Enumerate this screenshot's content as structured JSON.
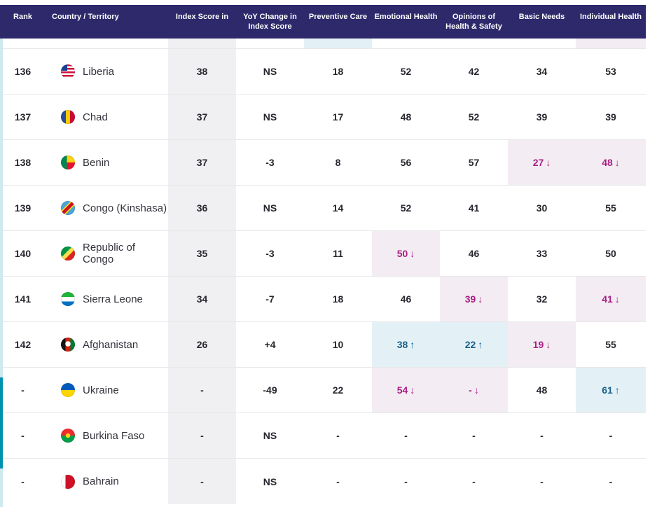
{
  "header": {
    "columns": [
      {
        "label": "Rank"
      },
      {
        "label": "Country / Territory"
      },
      {
        "label": "Index Score in"
      },
      {
        "label": "YoY Change in Index Score"
      },
      {
        "label": "Preventive Care"
      },
      {
        "label": "Emotional Health"
      },
      {
        "label": "Opinions of Health & Safety"
      },
      {
        "label": "Basic Needs"
      },
      {
        "label": "Individual Health"
      }
    ]
  },
  "rows": [
    {
      "rank": "136",
      "country": "Liberia",
      "flag": "liberia",
      "index": "38",
      "yoy": "NS",
      "preventive": "18",
      "emotional": "52",
      "opinions": "42",
      "basic": "34",
      "individual": "53"
    },
    {
      "rank": "137",
      "country": "Chad",
      "flag": "chad",
      "index": "37",
      "yoy": "NS",
      "preventive": "17",
      "emotional": "48",
      "opinions": "52",
      "basic": "39",
      "individual": "39"
    },
    {
      "rank": "138",
      "country": "Benin",
      "flag": "benin",
      "index": "37",
      "yoy": "-3",
      "preventive": "8",
      "emotional": "56",
      "opinions": "57",
      "basic": {
        "v": "27",
        "t": "down"
      },
      "individual": {
        "v": "48",
        "t": "down"
      }
    },
    {
      "rank": "139",
      "country": "Congo (Kinshasa)",
      "flag": "congo-kinshasa",
      "index": "36",
      "yoy": "NS",
      "preventive": "14",
      "emotional": "52",
      "opinions": "41",
      "basic": "30",
      "individual": "55"
    },
    {
      "rank": "140",
      "country": "Republic of Congo",
      "flag": "republic-of-congo",
      "index": "35",
      "yoy": "-3",
      "preventive": "11",
      "emotional": {
        "v": "50",
        "t": "down"
      },
      "opinions": "46",
      "basic": "33",
      "individual": "50"
    },
    {
      "rank": "141",
      "country": "Sierra Leone",
      "flag": "sierra-leone",
      "index": "34",
      "yoy": "-7",
      "preventive": "18",
      "emotional": "46",
      "opinions": {
        "v": "39",
        "t": "down"
      },
      "basic": "32",
      "individual": {
        "v": "41",
        "t": "down"
      }
    },
    {
      "rank": "142",
      "country": "Afghanistan",
      "flag": "afghanistan",
      "index": "26",
      "yoy": "+4",
      "preventive": "10",
      "emotional": {
        "v": "38",
        "t": "up"
      },
      "opinions": {
        "v": "22",
        "t": "up"
      },
      "basic": {
        "v": "19",
        "t": "down"
      },
      "individual": "55"
    },
    {
      "rank": "-",
      "country": "Ukraine",
      "flag": "ukraine",
      "index": "-",
      "yoy": "-49",
      "preventive": "22",
      "emotional": {
        "v": "54",
        "t": "down"
      },
      "opinions": {
        "v": "-",
        "t": "down"
      },
      "basic": "48",
      "individual": {
        "v": "61",
        "t": "up"
      }
    },
    {
      "rank": "-",
      "country": "Burkina Faso",
      "flag": "burkina-faso",
      "index": "-",
      "yoy": "NS",
      "preventive": "-",
      "emotional": "-",
      "opinions": "-",
      "basic": "-",
      "individual": "-"
    },
    {
      "rank": "-",
      "country": "Bahrain",
      "flag": "bahrain",
      "index": "-",
      "yoy": "NS",
      "preventive": "-",
      "emotional": "-",
      "opinions": "-",
      "basic": "-",
      "individual": "-"
    }
  ],
  "partial_row": {
    "highlights": {
      "index": "gray",
      "preventive": "up",
      "individual": "down"
    }
  },
  "trend_arrows": {
    "down": "↓",
    "up": "↑"
  },
  "colors": {
    "header_bg": "#2d296b",
    "header_text": "#ffffff",
    "index_column_bg": "#f0f0f2",
    "decline_bg": "#f3ecf2",
    "decline_text": "#a91e84",
    "improve_bg": "#e3f1f6",
    "improve_text": "#1a6189",
    "scroll_track": "#cfe9ef",
    "scroll_thumb": "#0090b0"
  }
}
